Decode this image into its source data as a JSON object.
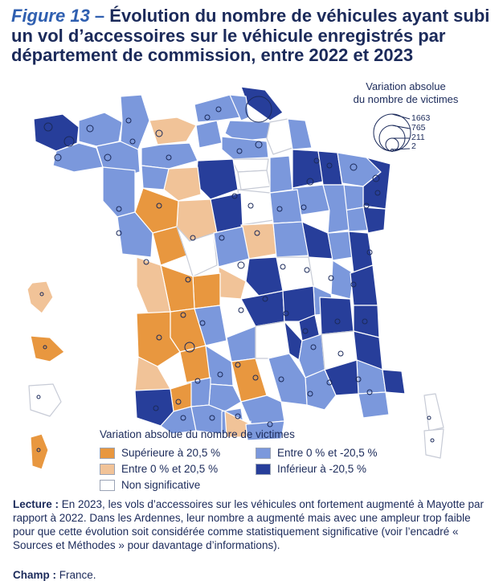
{
  "title": {
    "figure_label": "Figure 13",
    "dash": " – ",
    "text": "Évolution du nombre de véhicules ayant subi un vol d’accessoires sur le véhicule enregistrés par département de commission, entre 2022 et 2023"
  },
  "bubble_legend": {
    "title_line1": "Variation absolue",
    "title_line2": "du nombre de victimes",
    "values": [
      "1663",
      "765",
      "211",
      "2"
    ]
  },
  "legend": {
    "title": "Variation absolue du nombre de victimes",
    "items": [
      {
        "label": "Supérieure à 20,5 %",
        "color": "#e8973f"
      },
      {
        "label": "Entre 0 % et 20,5 %",
        "color": "#f1c398"
      },
      {
        "label": "Non significative",
        "color": "#ffffff"
      },
      {
        "label": "Entre 0 % et -20,5 %",
        "color": "#7b98dc"
      },
      {
        "label": "Inférieur à -20,5 %",
        "color": "#273e9a"
      }
    ]
  },
  "colors": {
    "border": "#ffffff",
    "bubble": "#1b2a5a"
  },
  "lecture": {
    "label": "Lecture :",
    "text": " En 2023, les vols d’accessoires sur les véhicules ont fortement augmenté à Mayotte par rapport à 2022. Dans les Ardennes, leur nombre a augmenté mais avec une ampleur trop faible pour que cette évolution soit considérée comme statistiquement significative (voir l’encadré « Sources et Méthodes » pour davantage d’informations)."
  },
  "champ": {
    "label": "Champ :",
    "text": " France."
  }
}
